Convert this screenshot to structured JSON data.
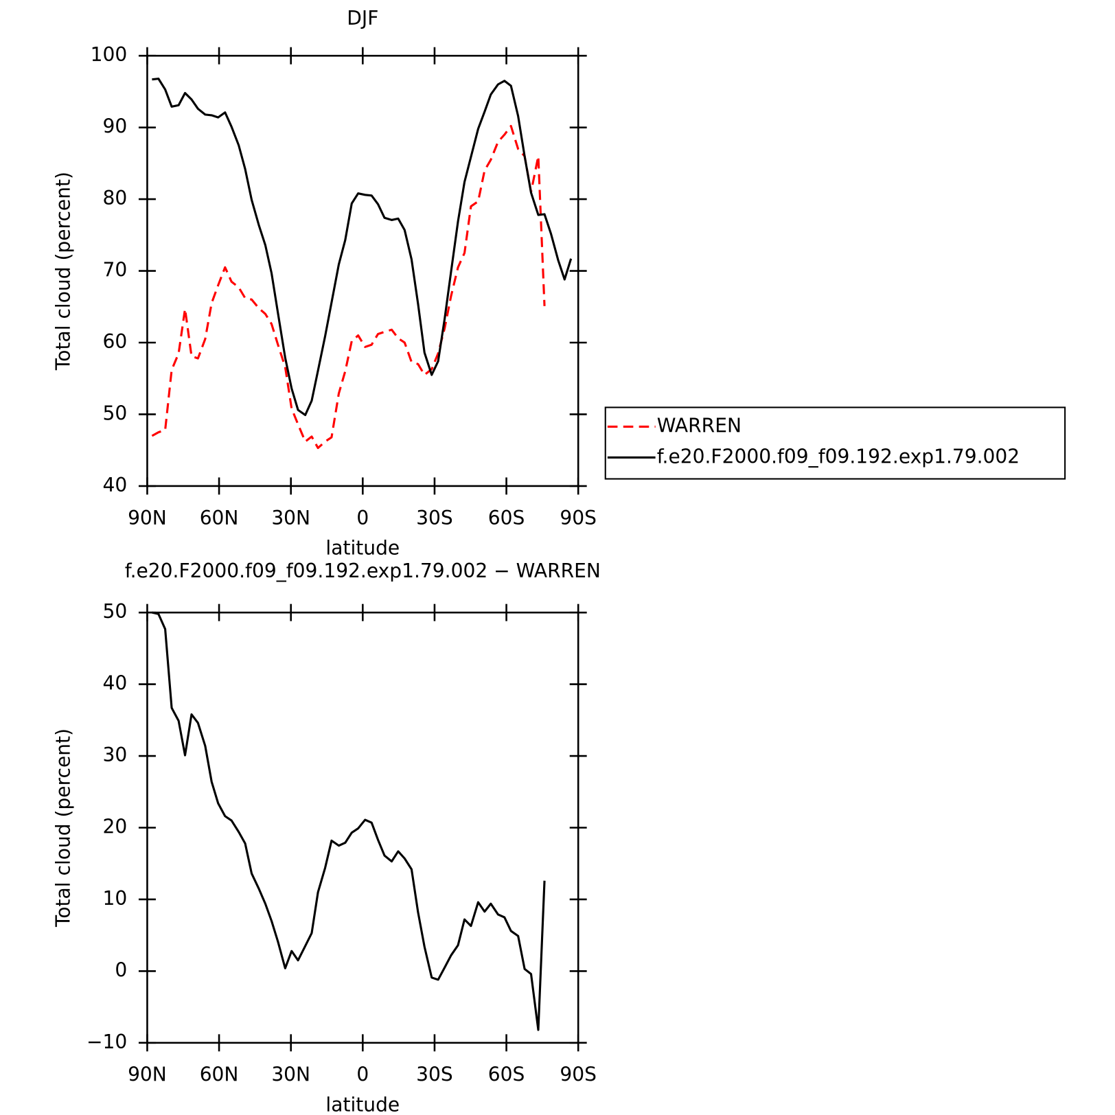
{
  "chart_data": [
    {
      "type": "line",
      "title": "DJF",
      "x_label": "latitude",
      "y_label": "Total cloud (percent)",
      "x": [
        88,
        85.3,
        82.5,
        79.8,
        76.9,
        74.2,
        71.5,
        68.8,
        65.8,
        63.1,
        60.4,
        57.5,
        54.8,
        51.8,
        49.1,
        46.4,
        43.4,
        40.7,
        38.1,
        35.4,
        32.4,
        29.7,
        27,
        24,
        21.3,
        18.7,
        15.7,
        13,
        10,
        7.3,
        4.6,
        1.9,
        -1,
        -3.7,
        -6.4,
        -9.1,
        -12.1,
        -14.8,
        -17.5,
        -20.4,
        -23.1,
        -25.8,
        -28.8,
        -31.5,
        -34.2,
        -36.9,
        -39.8,
        -42.5,
        -45.2,
        -48.2,
        -50.9,
        -53.5,
        -56.5,
        -59.2,
        -61.9,
        -64.9,
        -67.6,
        -70.3,
        -73.3,
        -75.9,
        -78.6,
        -81.6,
        -84.3,
        -87
      ],
      "series": [
        {
          "name": "WARREN",
          "color": "#ff0000",
          "dashed": true,
          "values": [
            47.0,
            47.5,
            47.8,
            56.2,
            58.5,
            64.7,
            58.1,
            57.8,
            60.5,
            65.5,
            68.0,
            70.5,
            68.5,
            67.7,
            66.2,
            66.0,
            64.8,
            64.0,
            62.6,
            59.7,
            56.6,
            50.8,
            48.6,
            46.2,
            46.9,
            45.3,
            46.2,
            46.8,
            52.9,
            56.0,
            60.2,
            61.0,
            59.4,
            59.7,
            61.2,
            61.5,
            61.8,
            60.6,
            60.0,
            57.3,
            57.0,
            55.5,
            56.3,
            58.5,
            62.0,
            66.5,
            70.5,
            72.5,
            79.0,
            79.7,
            84.0,
            85.5,
            88.0,
            89.0,
            90.2,
            87.0,
            86.0,
            81.0,
            86.0,
            65.1,
            null,
            null,
            null,
            null
          ]
        },
        {
          "name": "f.e20.F2000.f09_f09.192.exp1.79.002",
          "color": "#000000",
          "dashed": false,
          "values": [
            96.7,
            96.8,
            95.3,
            92.9,
            93.1,
            94.8,
            93.9,
            92.6,
            91.8,
            91.7,
            91.4,
            92.1,
            90.1,
            87.5,
            84.2,
            79.9,
            76.4,
            73.6,
            69.7,
            64.1,
            57.9,
            53.6,
            50.6,
            49.9,
            51.9,
            56.1,
            60.9,
            65.6,
            70.9,
            74.3,
            79.4,
            80.8,
            80.6,
            80.5,
            79.3,
            77.4,
            77.1,
            77.3,
            75.7,
            71.6,
            65.4,
            58.6,
            55.5,
            57.4,
            63.3,
            69.9,
            76.9,
            82.4,
            85.9,
            89.8,
            92.2,
            94.6,
            96.0,
            96.5,
            95.8,
            91.6,
            86.0,
            80.9,
            77.8,
            77.9,
            75.2,
            71.5,
            68.8,
            71.7
          ]
        }
      ],
      "xlim": [
        90,
        -90
      ],
      "xticks": [
        {
          "value": 90,
          "label": "90N"
        },
        {
          "value": 60,
          "label": "60N"
        },
        {
          "value": 30,
          "label": "30N"
        },
        0,
        {
          "value": -30,
          "label": "30S"
        },
        {
          "value": -60,
          "label": "60S"
        },
        {
          "value": -90,
          "label": "90S"
        }
      ],
      "ylim": [
        40,
        100
      ],
      "yticks": [
        40,
        50,
        60,
        70,
        80,
        90,
        100
      ],
      "legend": "outside-right"
    },
    {
      "type": "line",
      "title": "f.e20.F2000.f09_f09.192.exp1.79.002 − WARREN",
      "x_label": "latitude",
      "y_label": "Total cloud (percent)",
      "x": [
        88,
        85.3,
        82.5,
        79.8,
        76.9,
        74.2,
        71.5,
        68.8,
        65.8,
        63.1,
        60.4,
        57.5,
        54.8,
        51.8,
        49.1,
        46.4,
        43.4,
        40.7,
        38.1,
        35.4,
        32.4,
        29.7,
        27,
        24,
        21.3,
        18.7,
        15.7,
        13,
        10,
        7.3,
        4.6,
        1.9,
        -1,
        -3.7,
        -6.4,
        -9.1,
        -12.1,
        -14.8,
        -17.5,
        -20.4,
        -23.1,
        -25.8,
        -28.8,
        -31.5,
        -34.2,
        -36.9,
        -39.8,
        -42.5,
        -45.2,
        -48.2,
        -50.9,
        -53.5,
        -56.5,
        -59.2,
        -61.9,
        -64.9,
        -67.6,
        -70.3,
        -73.3,
        -75.9,
        -78.6,
        -81.6,
        -84.3,
        -87
      ],
      "color": "#000000",
      "values": [
        50.0,
        49.8,
        47.7,
        36.7,
        34.9,
        30.1,
        35.8,
        34.6,
        31.4,
        26.4,
        23.4,
        21.6,
        21.0,
        19.4,
        17.8,
        13.6,
        11.5,
        9.4,
        7.0,
        4.1,
        0.4,
        2.8,
        1.5,
        3.5,
        5.3,
        11.0,
        14.4,
        18.2,
        17.5,
        17.9,
        19.3,
        19.9,
        21.1,
        20.7,
        18.3,
        16.1,
        15.3,
        16.7,
        15.7,
        14.2,
        8.2,
        3.4,
        -0.9,
        -1.2,
        0.5,
        2.2,
        3.6,
        7.2,
        6.3,
        9.6,
        8.3,
        9.4,
        7.9,
        7.5,
        5.6,
        4.9,
        0.3,
        -0.4,
        -8.2,
        12.6,
        null,
        null,
        null,
        null
      ],
      "xlim": [
        90,
        -90
      ],
      "xticks": [
        {
          "value": 90,
          "label": "90N"
        },
        {
          "value": 60,
          "label": "60N"
        },
        {
          "value": 30,
          "label": "30N"
        },
        0,
        {
          "value": -30,
          "label": "30S"
        },
        {
          "value": -60,
          "label": "60S"
        },
        {
          "value": -90,
          "label": "90S"
        }
      ],
      "ylim": [
        -10,
        50
      ],
      "yticks": [
        {
          "value": -10,
          "label": "−10"
        },
        0,
        10,
        20,
        30,
        40,
        50
      ]
    }
  ]
}
